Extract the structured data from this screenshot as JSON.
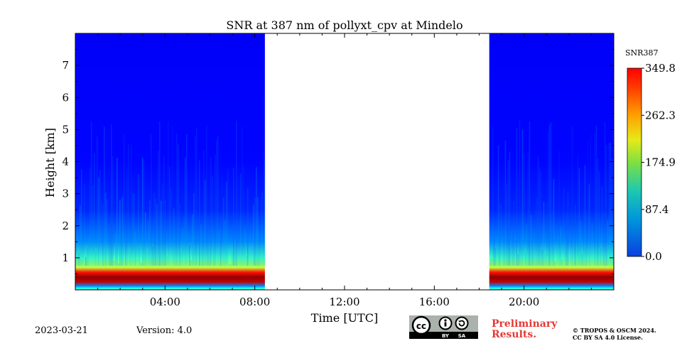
{
  "chart_data": {
    "type": "heatmap",
    "title": "SNR at 387 nm of pollyxt_cpv at Mindelo",
    "xlabel": "Time [UTC]",
    "ylabel": "Height [km]",
    "x_range_hours": [
      0,
      24
    ],
    "y_range_km": [
      0,
      8
    ],
    "x_ticks": [
      "04:00",
      "08:00",
      "12:00",
      "16:00",
      "20:00"
    ],
    "y_ticks": [
      "1",
      "2",
      "3",
      "4",
      "5",
      "6",
      "7"
    ],
    "colorbar": {
      "label": "SNR387",
      "min": 0.0,
      "max": 349.8,
      "ticks": [
        "0.0",
        "87.4",
        "174.9",
        "262.3",
        "349.8"
      ],
      "colormap": "jet"
    },
    "data_segments": [
      {
        "start_hour": 0.0,
        "end_hour": 8.45
      },
      {
        "start_hour": 18.45,
        "end_hour": 24.0
      }
    ],
    "profile": [
      {
        "height_km": 0.05,
        "snr": 120
      },
      {
        "height_km": 0.12,
        "snr": 60
      },
      {
        "height_km": 0.25,
        "snr": 330
      },
      {
        "height_km": 0.4,
        "snr": 349.8
      },
      {
        "height_km": 0.55,
        "snr": 300
      },
      {
        "height_km": 0.7,
        "snr": 180
      },
      {
        "height_km": 1.0,
        "snr": 130
      },
      {
        "height_km": 1.5,
        "snr": 60
      },
      {
        "height_km": 2.5,
        "snr": 20
      },
      {
        "height_km": 4.0,
        "snr": 8
      },
      {
        "height_km": 8.0,
        "snr": 3
      }
    ]
  },
  "footer": {
    "date": "2023-03-21",
    "version": "Version: 4.0",
    "preliminary_line1": "Preliminary",
    "preliminary_line2": "Results.",
    "copyright_line1": "© TROPOS & OSCM 2024.",
    "copyright_line2": "CC BY SA 4.0 License.",
    "license_badge": {
      "cc": "cc",
      "by": "BY",
      "sa": "SA"
    }
  },
  "colors": {
    "preliminary": "#e53935",
    "cc_badge_bg": "#aab2ab"
  }
}
